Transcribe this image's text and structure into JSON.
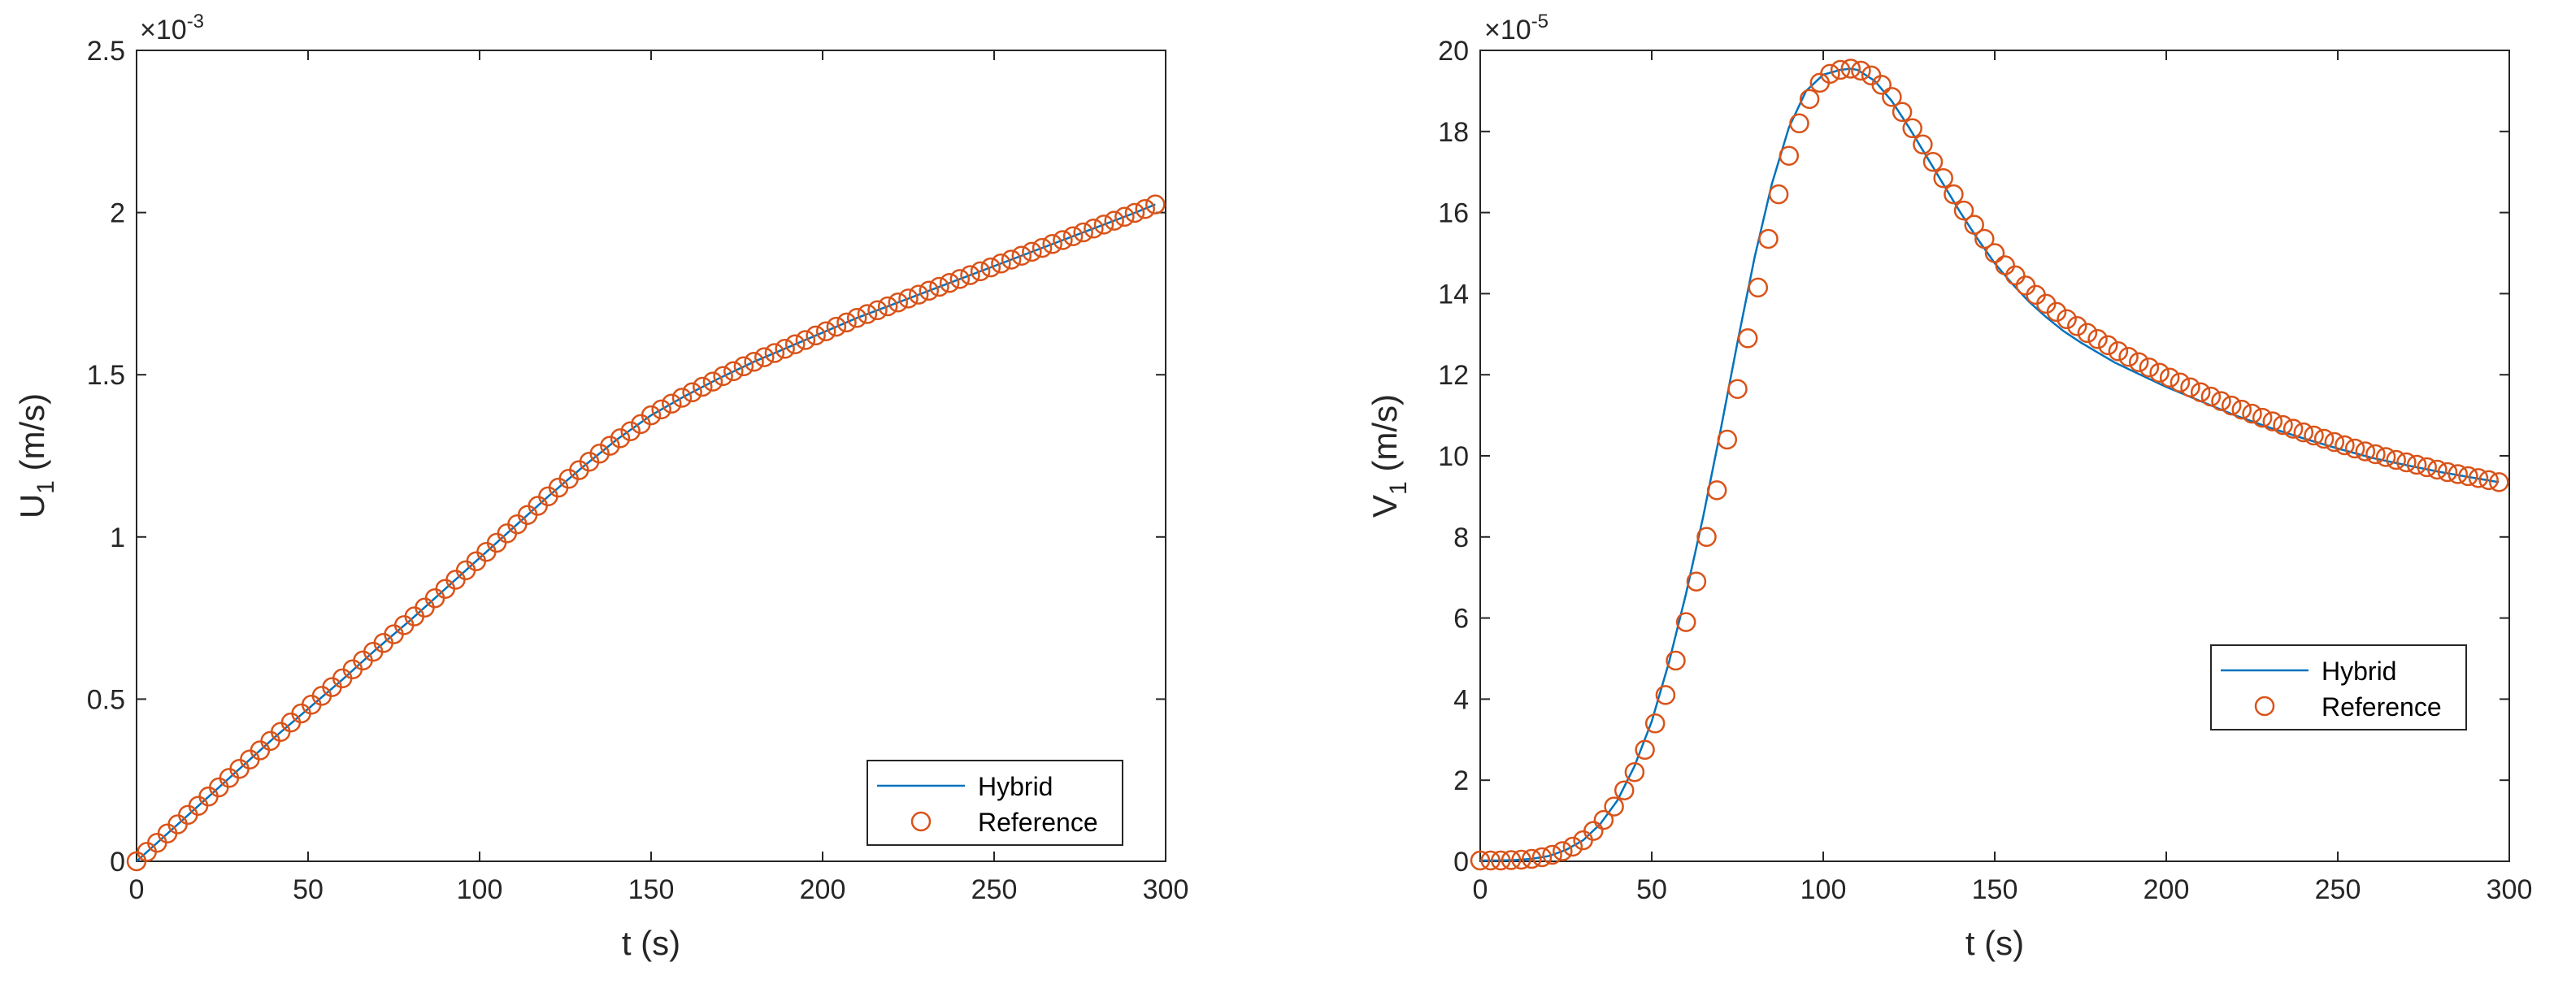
{
  "figure": {
    "colors": {
      "hybrid": "#0072BD",
      "reference": "#D95319",
      "axes": "#262626",
      "background": "#ffffff"
    }
  },
  "chart_data": [
    {
      "type": "line",
      "title": "",
      "xlabel": "t (s)",
      "ylabel_main": "U",
      "ylabel_sub": "1",
      "ylabel_unit": " (m/s)",
      "exponent_base": "×10",
      "exponent_power": "-3",
      "xlim": [
        0,
        300
      ],
      "ylim": [
        0,
        2.5
      ],
      "xticks": [
        0,
        50,
        100,
        150,
        200,
        250,
        300
      ],
      "xtick_labels": [
        "0",
        "50",
        "100",
        "150",
        "200",
        "250",
        "300"
      ],
      "yticks": [
        0,
        0.5,
        1,
        1.5,
        2,
        2.5
      ],
      "ytick_labels": [
        "0",
        "0.5",
        "1",
        "1.5",
        "2",
        "2.5"
      ],
      "legend": [
        "Hybrid",
        "Reference"
      ],
      "legend_location": "bottom-right",
      "grid": false,
      "series": [
        {
          "name": "Hybrid",
          "style": "line",
          "x": [
            0,
            10,
            20,
            30,
            40,
            50,
            60,
            70,
            80,
            90,
            100,
            110,
            120,
            130,
            140,
            150,
            160,
            170,
            180,
            190,
            200,
            210,
            220,
            230,
            240,
            250,
            260,
            270,
            280,
            290,
            297
          ],
          "values": [
            0,
            0.095,
            0.19,
            0.285,
            0.38,
            0.47,
            0.56,
            0.655,
            0.745,
            0.84,
            0.935,
            1.03,
            1.125,
            1.215,
            1.3,
            1.375,
            1.435,
            1.49,
            1.54,
            1.585,
            1.63,
            1.675,
            1.715,
            1.755,
            1.795,
            1.835,
            1.875,
            1.915,
            1.955,
            1.995,
            2.025
          ]
        },
        {
          "name": "Reference",
          "style": "markers",
          "x": [
            0,
            3,
            6,
            9,
            12,
            15,
            18,
            21,
            24,
            27,
            30,
            33,
            36,
            39,
            42,
            45,
            48,
            51,
            54,
            57,
            60,
            63,
            66,
            69,
            72,
            75,
            78,
            81,
            84,
            87,
            90,
            93,
            96,
            99,
            102,
            105,
            108,
            111,
            114,
            117,
            120,
            123,
            126,
            129,
            132,
            135,
            138,
            141,
            144,
            147,
            150,
            153,
            156,
            159,
            162,
            165,
            168,
            171,
            174,
            177,
            180,
            183,
            186,
            189,
            192,
            195,
            198,
            201,
            204,
            207,
            210,
            213,
            216,
            219,
            222,
            225,
            228,
            231,
            234,
            237,
            240,
            243,
            246,
            249,
            252,
            255,
            258,
            261,
            264,
            267,
            270,
            273,
            276,
            279,
            282,
            285,
            288,
            291,
            294,
            297
          ],
          "values": [
            0,
            0.029,
            0.057,
            0.086,
            0.114,
            0.143,
            0.171,
            0.2,
            0.228,
            0.257,
            0.285,
            0.314,
            0.342,
            0.371,
            0.399,
            0.428,
            0.456,
            0.483,
            0.51,
            0.537,
            0.564,
            0.592,
            0.619,
            0.646,
            0.673,
            0.7,
            0.728,
            0.755,
            0.782,
            0.811,
            0.84,
            0.868,
            0.897,
            0.925,
            0.954,
            0.982,
            1.011,
            1.039,
            1.068,
            1.096,
            1.125,
            1.152,
            1.179,
            1.206,
            1.232,
            1.257,
            1.281,
            1.304,
            1.326,
            1.348,
            1.375,
            1.393,
            1.411,
            1.429,
            1.446,
            1.463,
            1.479,
            1.496,
            1.511,
            1.526,
            1.54,
            1.554,
            1.567,
            1.58,
            1.594,
            1.607,
            1.621,
            1.634,
            1.648,
            1.661,
            1.675,
            1.687,
            1.699,
            1.711,
            1.723,
            1.735,
            1.747,
            1.759,
            1.771,
            1.783,
            1.795,
            1.807,
            1.819,
            1.831,
            1.843,
            1.855,
            1.867,
            1.879,
            1.891,
            1.903,
            1.915,
            1.927,
            1.939,
            1.951,
            1.963,
            1.975,
            1.987,
            1.999,
            2.011,
            2.025
          ]
        }
      ]
    },
    {
      "type": "line",
      "title": "",
      "xlabel": "t (s)",
      "ylabel_main": "V",
      "ylabel_sub": "1",
      "ylabel_unit": " (m/s)",
      "exponent_base": "×10",
      "exponent_power": "-5",
      "xlim": [
        0,
        300
      ],
      "ylim": [
        0,
        20
      ],
      "xticks": [
        0,
        50,
        100,
        150,
        200,
        250,
        300
      ],
      "xtick_labels": [
        "0",
        "50",
        "100",
        "150",
        "200",
        "250",
        "300"
      ],
      "yticks": [
        0,
        2,
        4,
        6,
        8,
        10,
        12,
        14,
        16,
        18,
        20
      ],
      "ytick_labels": [
        "0",
        "2",
        "4",
        "6",
        "8",
        "10",
        "12",
        "14",
        "16",
        "18",
        "20"
      ],
      "legend": [
        "Hybrid",
        "Reference"
      ],
      "legend_location": "right",
      "grid": false,
      "series": [
        {
          "name": "Hybrid",
          "style": "line",
          "x": [
            0,
            5,
            10,
            15,
            20,
            25,
            30,
            35,
            40,
            45,
            50,
            55,
            60,
            65,
            70,
            75,
            80,
            85,
            90,
            95,
            100,
            105,
            108,
            110,
            115,
            120,
            125,
            130,
            135,
            140,
            145,
            150,
            155,
            160,
            165,
            170,
            175,
            180,
            185,
            190,
            195,
            200,
            210,
            220,
            230,
            240,
            250,
            260,
            270,
            280,
            290,
            297
          ],
          "values": [
            0.02,
            0.02,
            0.03,
            0.06,
            0.13,
            0.28,
            0.52,
            0.92,
            1.5,
            2.35,
            3.45,
            4.9,
            6.6,
            8.5,
            10.6,
            12.8,
            14.9,
            16.7,
            18.1,
            19.0,
            19.4,
            19.52,
            19.55,
            19.52,
            19.25,
            18.75,
            18.1,
            17.4,
            16.7,
            16.0,
            15.35,
            14.75,
            14.25,
            13.8,
            13.42,
            13.08,
            12.8,
            12.55,
            12.3,
            12.1,
            11.9,
            11.7,
            11.35,
            11.0,
            10.7,
            10.43,
            10.18,
            9.95,
            9.77,
            9.6,
            9.45,
            9.35
          ]
        },
        {
          "name": "Reference",
          "style": "markers",
          "x": [
            0,
            3,
            6,
            9,
            12,
            15,
            18,
            21,
            24,
            27,
            30,
            33,
            36,
            39,
            42,
            45,
            48,
            51,
            54,
            57,
            60,
            63,
            66,
            69,
            72,
            75,
            78,
            81,
            84,
            87,
            90,
            93,
            96,
            99,
            102,
            105,
            108,
            111,
            114,
            117,
            120,
            123,
            126,
            129,
            132,
            135,
            138,
            141,
            144,
            147,
            150,
            153,
            156,
            159,
            162,
            165,
            168,
            171,
            174,
            177,
            180,
            183,
            186,
            189,
            192,
            195,
            198,
            201,
            204,
            207,
            210,
            213,
            216,
            219,
            222,
            225,
            228,
            231,
            234,
            237,
            240,
            243,
            246,
            249,
            252,
            255,
            258,
            261,
            264,
            267,
            270,
            273,
            276,
            279,
            282,
            285,
            288,
            291,
            294,
            297
          ],
          "values": [
            0.02,
            0.02,
            0.02,
            0.03,
            0.04,
            0.06,
            0.1,
            0.16,
            0.25,
            0.36,
            0.52,
            0.75,
            1.02,
            1.35,
            1.75,
            2.2,
            2.75,
            3.4,
            4.1,
            4.95,
            5.9,
            6.9,
            8.0,
            9.15,
            10.4,
            11.65,
            12.9,
            14.15,
            15.35,
            16.45,
            17.4,
            18.2,
            18.8,
            19.2,
            19.42,
            19.52,
            19.55,
            19.5,
            19.38,
            19.15,
            18.85,
            18.48,
            18.08,
            17.68,
            17.25,
            16.85,
            16.45,
            16.05,
            15.7,
            15.35,
            15.0,
            14.7,
            14.45,
            14.2,
            13.97,
            13.75,
            13.55,
            13.37,
            13.2,
            13.03,
            12.88,
            12.73,
            12.58,
            12.44,
            12.31,
            12.18,
            12.05,
            11.93,
            11.81,
            11.69,
            11.57,
            11.46,
            11.35,
            11.24,
            11.14,
            11.04,
            10.94,
            10.85,
            10.76,
            10.67,
            10.58,
            10.5,
            10.42,
            10.34,
            10.26,
            10.18,
            10.11,
            10.04,
            9.97,
            9.9,
            9.84,
            9.78,
            9.72,
            9.66,
            9.6,
            9.55,
            9.5,
            9.45,
            9.4,
            9.35
          ]
        }
      ]
    }
  ]
}
